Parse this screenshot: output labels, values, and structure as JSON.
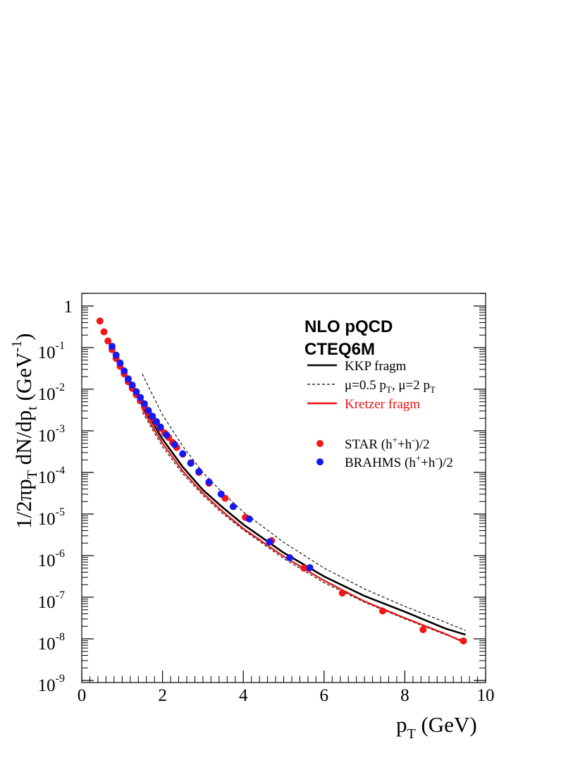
{
  "chart_data": {
    "type": "scatter",
    "title_lines": [
      "NLO pQCD",
      "CTEQ6M"
    ],
    "xlabel": {
      "main": "p",
      "sub": "T",
      "rest": " (GeV)"
    },
    "ylabel": {
      "part1": "1/2",
      "pi": "π",
      "part2": "p",
      "sub1": "T",
      "part3": " dN/dp",
      "sub2": "t",
      "part4": " (GeV",
      "sup": "-1",
      "part5": ")"
    },
    "xlim": [
      0,
      10
    ],
    "ylim_exp": [
      -9,
      0.4
    ],
    "x_ticks": [
      {
        "v": 0,
        "label": "0"
      },
      {
        "v": 2,
        "label": "2"
      },
      {
        "v": 4,
        "label": "4"
      },
      {
        "v": 6,
        "label": "6"
      },
      {
        "v": 8,
        "label": "8"
      },
      {
        "v": 10,
        "label": "10"
      }
    ],
    "y_ticks": [
      {
        "e": 0,
        "base": "1",
        "sup": ""
      },
      {
        "e": -1,
        "base": "10",
        "sup": "-1"
      },
      {
        "e": -2,
        "base": "10",
        "sup": "-2"
      },
      {
        "e": -3,
        "base": "10",
        "sup": "-3"
      },
      {
        "e": -4,
        "base": "10",
        "sup": "-4"
      },
      {
        "e": -5,
        "base": "10",
        "sup": "-5"
      },
      {
        "e": -6,
        "base": "10",
        "sup": "-6"
      },
      {
        "e": -7,
        "base": "10",
        "sup": "-7"
      },
      {
        "e": -8,
        "base": "10",
        "sup": "-8"
      },
      {
        "e": -9,
        "base": "10",
        "sup": "-9"
      }
    ],
    "legend": [
      {
        "kind": "line",
        "label": "KKP fragm",
        "color": "#000000",
        "dash": ""
      },
      {
        "kind": "line",
        "label_parts": [
          "μ=0.5 p",
          "T",
          ", μ=2 p",
          "T"
        ],
        "color": "#000000",
        "dash": "4,3"
      },
      {
        "kind": "line",
        "label": "Kretzer fragm",
        "color": "#e81010",
        "dash": ""
      },
      {
        "kind": "marker",
        "label_parts": [
          "STAR (h",
          "+",
          "+h",
          "-",
          ")/2"
        ],
        "color": "#f01818"
      },
      {
        "kind": "marker",
        "label_parts": [
          "BRAHMS (h",
          "+",
          "+h",
          "-",
          ")/2"
        ],
        "color": "#1818f0"
      }
    ],
    "series": [
      {
        "name": "STAR (h+ + h-)/2",
        "kind": "points",
        "color": "#f01818",
        "points": [
          [
            0.45,
            -0.36
          ],
          [
            0.55,
            -0.62
          ],
          [
            0.65,
            -0.84
          ],
          [
            0.75,
            -1.05
          ],
          [
            0.85,
            -1.26
          ],
          [
            0.95,
            -1.45
          ],
          [
            1.05,
            -1.63
          ],
          [
            1.15,
            -1.82
          ],
          [
            1.25,
            -1.98
          ],
          [
            1.35,
            -2.13
          ],
          [
            1.45,
            -2.28
          ],
          [
            1.55,
            -2.42
          ],
          [
            1.65,
            -2.56
          ],
          [
            1.75,
            -2.7
          ],
          [
            1.85,
            -2.82
          ],
          [
            1.95,
            -2.94
          ],
          [
            2.05,
            -3.05
          ],
          [
            2.15,
            -3.16
          ],
          [
            2.25,
            -3.28
          ],
          [
            2.35,
            -3.4
          ],
          [
            2.5,
            -3.56
          ],
          [
            2.7,
            -3.77
          ],
          [
            2.9,
            -4.0
          ],
          [
            3.15,
            -4.26
          ],
          [
            3.55,
            -4.62
          ],
          [
            4.05,
            -5.08
          ],
          [
            4.7,
            -5.64
          ],
          [
            5.5,
            -6.3
          ],
          [
            6.45,
            -6.9
          ],
          [
            7.45,
            -7.33
          ],
          [
            8.45,
            -7.78
          ],
          [
            9.45,
            -8.05
          ]
        ]
      },
      {
        "name": "BRAHMS (h+ + h-)/2",
        "kind": "points",
        "color": "#1818f0",
        "points": [
          [
            0.75,
            -0.97
          ],
          [
            0.85,
            -1.18
          ],
          [
            0.95,
            -1.37
          ],
          [
            1.05,
            -1.56
          ],
          [
            1.15,
            -1.75
          ],
          [
            1.25,
            -1.9
          ],
          [
            1.35,
            -2.06
          ],
          [
            1.45,
            -2.2
          ],
          [
            1.55,
            -2.35
          ],
          [
            1.65,
            -2.51
          ],
          [
            1.75,
            -2.65
          ],
          [
            1.85,
            -2.78
          ],
          [
            1.95,
            -2.91
          ],
          [
            2.1,
            -3.1
          ],
          [
            2.3,
            -3.33
          ],
          [
            2.5,
            -3.55
          ],
          [
            2.7,
            -3.78
          ],
          [
            2.9,
            -3.98
          ],
          [
            3.15,
            -4.23
          ],
          [
            3.45,
            -4.52
          ],
          [
            3.75,
            -4.82
          ],
          [
            4.15,
            -5.12
          ],
          [
            4.65,
            -5.67
          ],
          [
            5.15,
            -6.05
          ],
          [
            5.65,
            -6.29
          ]
        ]
      },
      {
        "name": "KKP fragm",
        "kind": "line",
        "color": "#000000",
        "width": 2.6,
        "dash": "",
        "points": [
          [
            1.5,
            -2.4
          ],
          [
            1.75,
            -2.8
          ],
          [
            2.0,
            -3.2
          ],
          [
            2.5,
            -3.87
          ],
          [
            3.0,
            -4.42
          ],
          [
            3.5,
            -4.85
          ],
          [
            4.0,
            -5.25
          ],
          [
            5.0,
            -5.93
          ],
          [
            6.0,
            -6.5
          ],
          [
            7.0,
            -6.97
          ],
          [
            8.0,
            -7.35
          ],
          [
            9.0,
            -7.75
          ],
          [
            9.5,
            -7.9
          ]
        ]
      },
      {
        "name": "μ=2 pT (lower)",
        "kind": "line",
        "color": "#000000",
        "width": 1.1,
        "dash": "4,3",
        "points": [
          [
            1.5,
            -2.55
          ],
          [
            1.75,
            -2.97
          ],
          [
            2.0,
            -3.38
          ],
          [
            2.5,
            -4.03
          ],
          [
            3.0,
            -4.55
          ],
          [
            3.5,
            -5.0
          ],
          [
            4.0,
            -5.38
          ],
          [
            5.0,
            -6.07
          ],
          [
            6.0,
            -6.65
          ],
          [
            7.0,
            -7.12
          ],
          [
            8.0,
            -7.52
          ],
          [
            9.0,
            -7.9
          ],
          [
            9.5,
            -8.05
          ]
        ]
      },
      {
        "name": "μ=0.5 pT (upper)",
        "kind": "line",
        "color": "#000000",
        "width": 1.1,
        "dash": "4,3",
        "points": [
          [
            1.5,
            -1.63
          ],
          [
            1.75,
            -2.13
          ],
          [
            2.0,
            -2.62
          ],
          [
            2.5,
            -3.37
          ],
          [
            3.0,
            -4.0
          ],
          [
            3.5,
            -4.5
          ],
          [
            4.0,
            -4.95
          ],
          [
            5.0,
            -5.68
          ],
          [
            6.0,
            -6.3
          ],
          [
            7.0,
            -6.8
          ],
          [
            8.0,
            -7.22
          ],
          [
            9.0,
            -7.6
          ],
          [
            9.5,
            -7.8
          ]
        ]
      },
      {
        "name": "Kretzer fragm",
        "kind": "line",
        "color": "#e81010",
        "width": 2.2,
        "dash": "",
        "points": [
          [
            1.5,
            -2.47
          ],
          [
            1.75,
            -2.9
          ],
          [
            2.0,
            -3.3
          ],
          [
            2.5,
            -3.97
          ],
          [
            3.0,
            -4.5
          ],
          [
            3.5,
            -4.95
          ],
          [
            4.0,
            -5.35
          ],
          [
            5.0,
            -6.02
          ],
          [
            6.0,
            -6.6
          ],
          [
            7.0,
            -7.1
          ],
          [
            8.0,
            -7.5
          ],
          [
            9.0,
            -7.88
          ],
          [
            9.5,
            -8.1
          ]
        ]
      }
    ]
  }
}
